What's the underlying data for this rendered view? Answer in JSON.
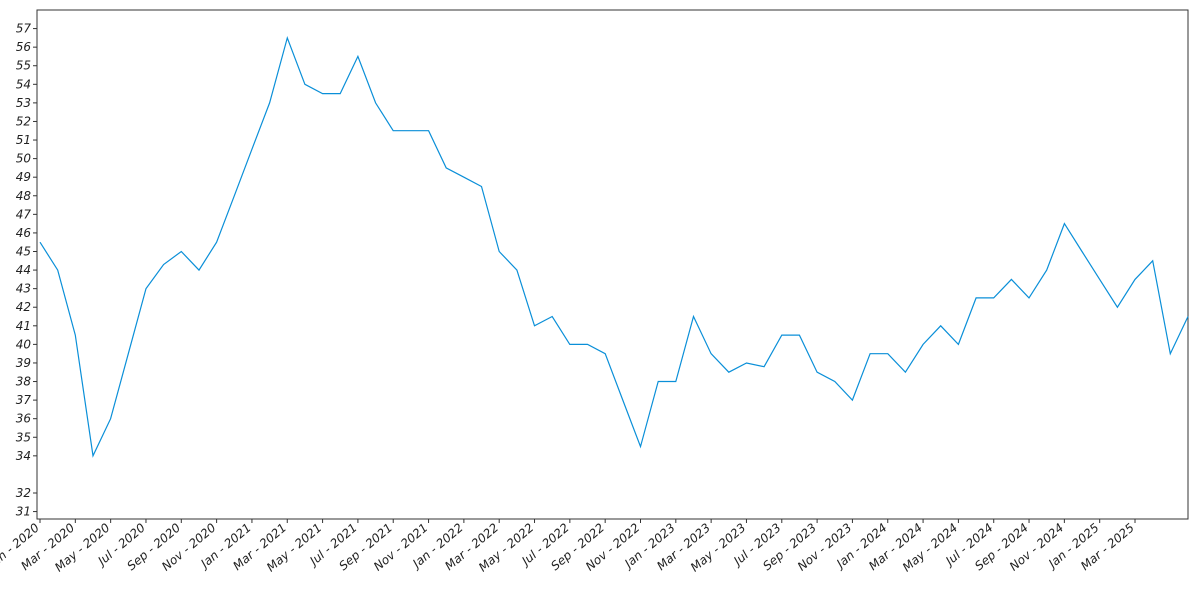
{
  "chart_data": {
    "type": "line",
    "x": [
      "2020-01",
      "2020-02",
      "2020-03",
      "2020-04",
      "2020-05",
      "2020-06",
      "2020-07",
      "2020-08",
      "2020-09",
      "2020-10",
      "2020-11",
      "2020-12",
      "2021-01",
      "2021-02",
      "2021-03",
      "2021-04",
      "2021-05",
      "2021-06",
      "2021-07",
      "2021-08",
      "2021-09",
      "2021-10",
      "2021-11",
      "2021-12",
      "2022-01",
      "2022-02",
      "2022-03",
      "2022-04",
      "2022-05",
      "2022-06",
      "2022-07",
      "2022-08",
      "2022-09",
      "2022-10",
      "2022-11",
      "2022-12",
      "2023-01",
      "2023-02",
      "2023-03",
      "2023-04",
      "2023-05",
      "2023-06",
      "2023-07",
      "2023-08",
      "2023-09",
      "2023-10",
      "2023-11",
      "2023-12",
      "2024-01",
      "2024-02",
      "2024-03",
      "2024-04",
      "2024-05",
      "2024-06",
      "2024-07",
      "2024-08",
      "2024-09",
      "2024-10",
      "2024-11",
      "2024-12",
      "2025-01",
      "2025-02",
      "2025-03",
      "2025-04",
      "2025-05",
      "2025-06"
    ],
    "series": [
      {
        "color": "#0a8fd8",
        "values": [
          45.5,
          44,
          40.5,
          34,
          36,
          39.5,
          43,
          44.3,
          45,
          44,
          45.5,
          48,
          50.5,
          53,
          56.5,
          54,
          53.5,
          53.5,
          55.5,
          53,
          51.5,
          51.5,
          51.5,
          49.5,
          49,
          48.5,
          45,
          44,
          41,
          41.5,
          40,
          40,
          39.5,
          37,
          34.5,
          38,
          38,
          41.5,
          39.5,
          38.5,
          39,
          38.8,
          40.5,
          40.5,
          38.5,
          38,
          37,
          39.5,
          39.5,
          38.5,
          40,
          41,
          40,
          42.5,
          42.5,
          43.5,
          42.5,
          44,
          46.5,
          45,
          43.5,
          42,
          43.5,
          44.5,
          39.5,
          41.5
        ]
      }
    ],
    "xlim": [
      "2020-01",
      "2025-06"
    ],
    "xticks": [
      {
        "value": "2020-01",
        "label": "Jan - 2020"
      },
      {
        "value": "2020-03",
        "label": "Mar - 2020"
      },
      {
        "value": "2020-05",
        "label": "May - 2020"
      },
      {
        "value": "2020-07",
        "label": "Jul - 2020"
      },
      {
        "value": "2020-09",
        "label": "Sep - 2020"
      },
      {
        "value": "2020-11",
        "label": "Nov - 2020"
      },
      {
        "value": "2021-01",
        "label": "Jan - 2021"
      },
      {
        "value": "2021-03",
        "label": "Mar - 2021"
      },
      {
        "value": "2021-05",
        "label": "May - 2021"
      },
      {
        "value": "2021-07",
        "label": "Jul - 2021"
      },
      {
        "value": "2021-09",
        "label": "Sep - 2021"
      },
      {
        "value": "2021-11",
        "label": "Nov - 2021"
      },
      {
        "value": "2022-01",
        "label": "Jan - 2022"
      },
      {
        "value": "2022-03",
        "label": "Mar - 2022"
      },
      {
        "value": "2022-05",
        "label": "May - 2022"
      },
      {
        "value": "2022-07",
        "label": "Jul - 2022"
      },
      {
        "value": "2022-09",
        "label": "Sep - 2022"
      },
      {
        "value": "2022-11",
        "label": "Nov - 2022"
      },
      {
        "value": "2023-01",
        "label": "Jan - 2023"
      },
      {
        "value": "2023-03",
        "label": "Mar - 2023"
      },
      {
        "value": "2023-05",
        "label": "May - 2023"
      },
      {
        "value": "2023-07",
        "label": "Jul - 2023"
      },
      {
        "value": "2023-09",
        "label": "Sep - 2023"
      },
      {
        "value": "2023-11",
        "label": "Nov - 2023"
      },
      {
        "value": "2024-01",
        "label": "Jan - 2024"
      },
      {
        "value": "2024-03",
        "label": "Mar - 2024"
      },
      {
        "value": "2024-05",
        "label": "May - 2024"
      },
      {
        "value": "2024-07",
        "label": "Jul - 2024"
      },
      {
        "value": "2024-09",
        "label": "Sep - 2024"
      },
      {
        "value": "2024-11",
        "label": "Nov - 2024"
      },
      {
        "value": "2025-01",
        "label": "Jan - 2025"
      },
      {
        "value": "2025-03",
        "label": "Mar - 2025"
      }
    ],
    "ylim": [
      30.6,
      58.0
    ],
    "yticks": [
      31,
      32,
      34,
      35,
      36,
      37,
      38,
      39,
      40,
      41,
      42,
      43,
      44,
      45,
      46,
      47,
      48,
      49,
      50,
      51,
      52,
      53,
      54,
      55,
      56,
      57
    ]
  }
}
